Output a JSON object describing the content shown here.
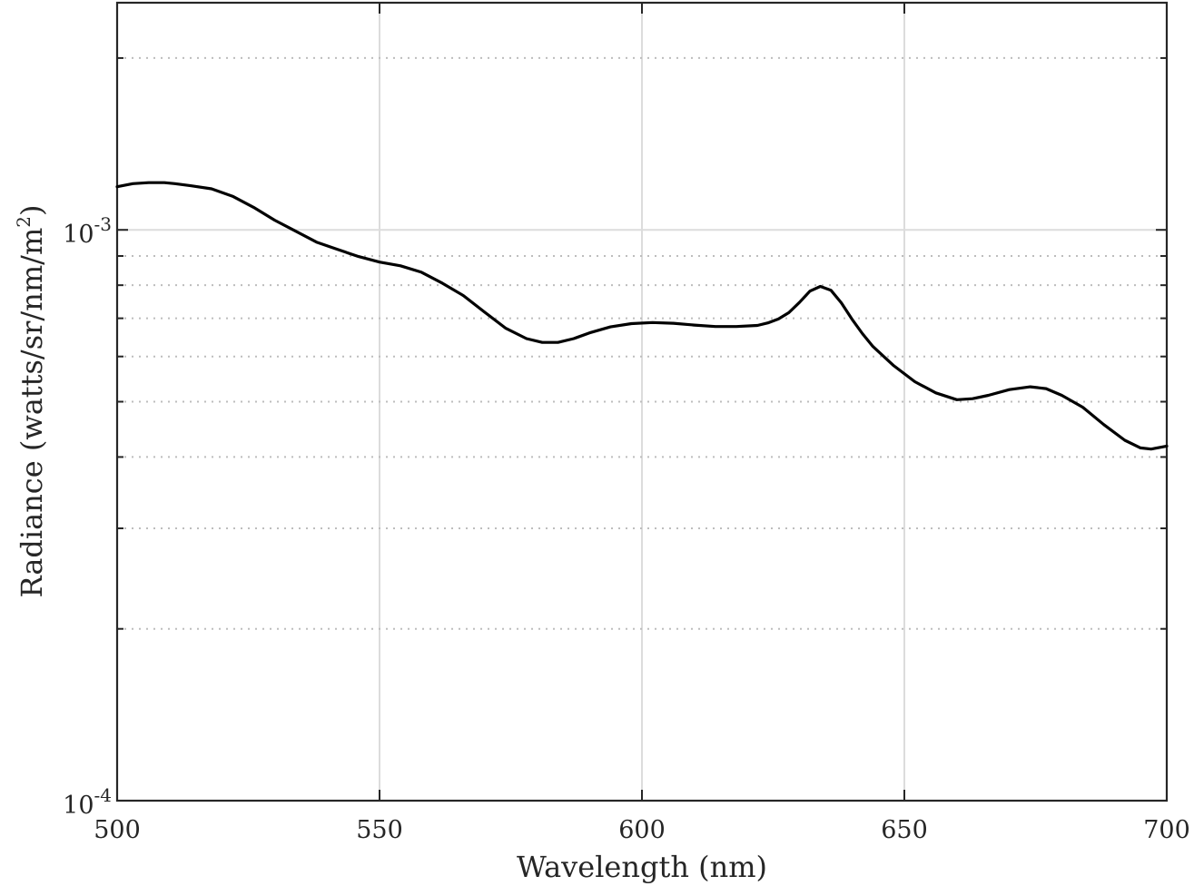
{
  "chart_data": {
    "type": "line",
    "xlabel": "Wavelength (nm)",
    "ylabel": "Radiance (watts/sr/nm/m",
    "ylabel_sup": "2",
    "ylabel_end": ")",
    "xlim": [
      500,
      700
    ],
    "ylim": [
      0.0001,
      0.0025
    ],
    "yscale": "log",
    "grid": true,
    "minor_grid": true,
    "x_ticks": [
      500,
      550,
      600,
      650,
      700
    ],
    "x_tick_labels": [
      "500",
      "550",
      "600",
      "650",
      "700"
    ],
    "y_ticks": [
      {
        "value": 0.0001,
        "base": "10",
        "exp": "-4"
      },
      {
        "value": 0.001,
        "base": "10",
        "exp": "-3"
      }
    ],
    "series": [
      {
        "color": "#000000",
        "x": [
          500,
          503,
          506,
          509,
          511,
          514,
          518,
          522,
          526,
          530,
          534,
          538,
          542,
          546,
          550,
          554,
          558,
          562,
          566,
          570,
          574,
          578,
          581,
          584,
          587,
          590,
          594,
          598,
          602,
          606,
          610,
          614,
          618,
          622,
          624,
          626,
          628,
          630,
          632,
          634,
          636,
          638,
          640,
          642,
          644,
          648,
          652,
          656,
          660,
          663,
          666,
          670,
          674,
          677,
          680,
          684,
          688,
          692,
          695,
          697,
          700
        ],
        "y": [
          0.00119,
          0.001205,
          0.00121,
          0.00121,
          0.001205,
          0.001195,
          0.00118,
          0.001145,
          0.001095,
          0.00104,
          0.000995,
          0.000952,
          0.000924,
          0.000898,
          0.000878,
          0.000865,
          0.000843,
          0.000806,
          0.000767,
          0.000718,
          0.000673,
          0.000645,
          0.000635,
          0.000635,
          0.000645,
          0.00066,
          0.000676,
          0.000685,
          0.000688,
          0.000686,
          0.000681,
          0.000677,
          0.000677,
          0.00068,
          0.000687,
          0.000698,
          0.000716,
          0.000746,
          0.000781,
          0.000796,
          0.000784,
          0.000745,
          0.000698,
          0.000658,
          0.000625,
          0.000578,
          0.000542,
          0.000518,
          0.000504,
          0.000506,
          0.000513,
          0.000525,
          0.000531,
          0.000527,
          0.000513,
          0.000489,
          0.000456,
          0.000428,
          0.000415,
          0.000413,
          0.000418
        ]
      }
    ]
  }
}
